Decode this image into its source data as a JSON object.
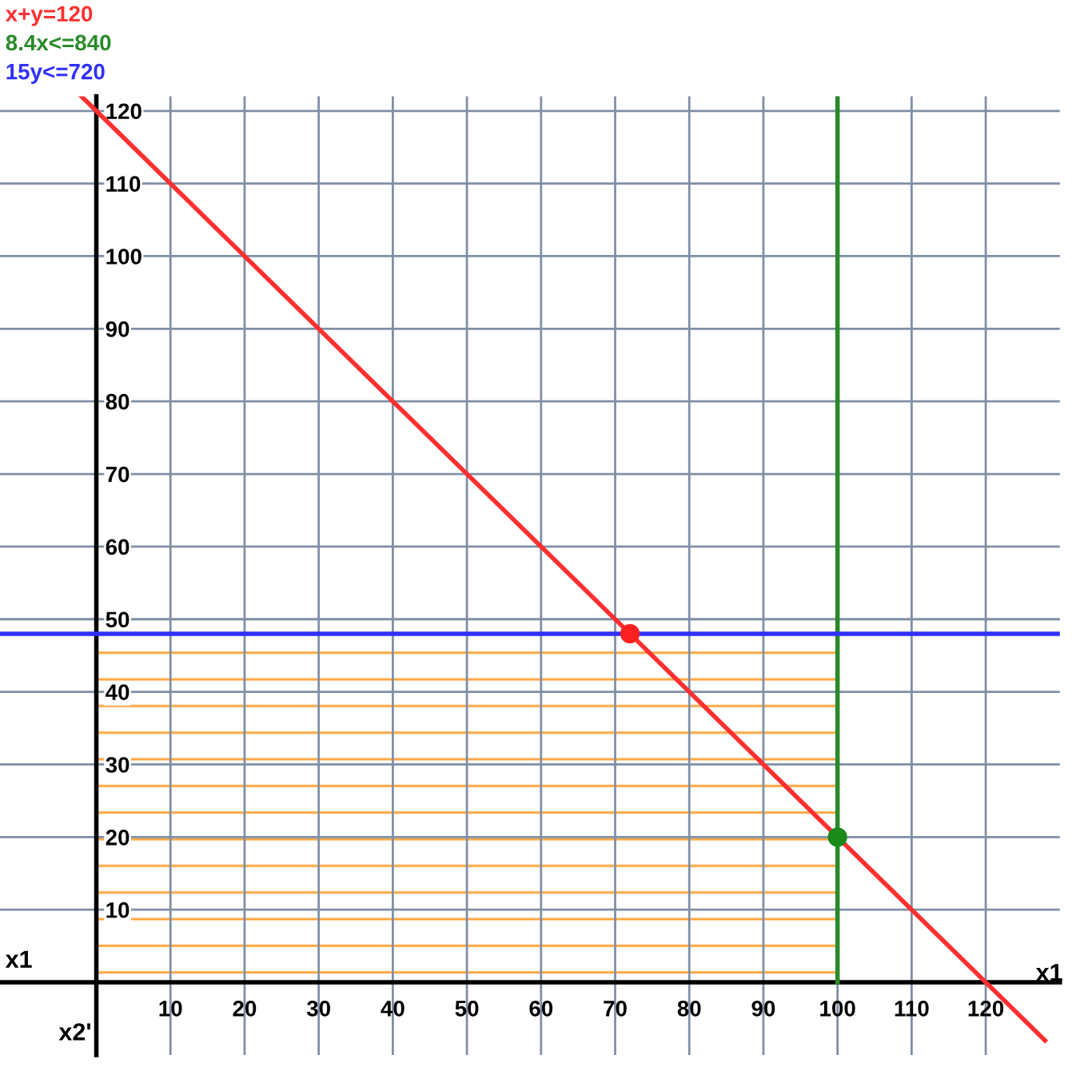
{
  "chart_data": {
    "type": "line",
    "xlabel": "x1",
    "ylabel": "x2'",
    "annotations": [
      "x1"
    ],
    "xlim": [
      -13,
      130
    ],
    "ylim": [
      -10,
      122
    ],
    "xticks": [
      10,
      20,
      30,
      40,
      50,
      60,
      70,
      80,
      90,
      100,
      110,
      120
    ],
    "yticks": [
      10,
      20,
      30,
      40,
      50,
      60,
      70,
      80,
      90,
      100,
      110,
      120
    ],
    "grid": true,
    "legend": "top left",
    "series": [
      {
        "type": "area",
        "color": "#ffa640",
        "x": [
          0,
          100
        ],
        "values": [
          48,
          48
        ]
      },
      {
        "name": "x+y=120",
        "color": "#ff3030",
        "x": [
          -2,
          128
        ],
        "values": [
          122,
          -8
        ]
      },
      {
        "name": "8.4x<=840",
        "color": "#2a8a2a",
        "x": [
          100,
          100
        ],
        "values": [
          0,
          122
        ]
      },
      {
        "name": "15y<=720",
        "color": "#3030ff",
        "x": [
          -13,
          130
        ],
        "values": [
          48,
          48
        ]
      },
      {
        "type": "scatter",
        "color": "#ff2020",
        "x": [
          72
        ],
        "values": [
          48
        ],
        "marker": "circle"
      },
      {
        "type": "scatter",
        "color": "#1a8a1a",
        "x": [
          100
        ],
        "values": [
          20
        ],
        "marker": "circle"
      }
    ]
  }
}
